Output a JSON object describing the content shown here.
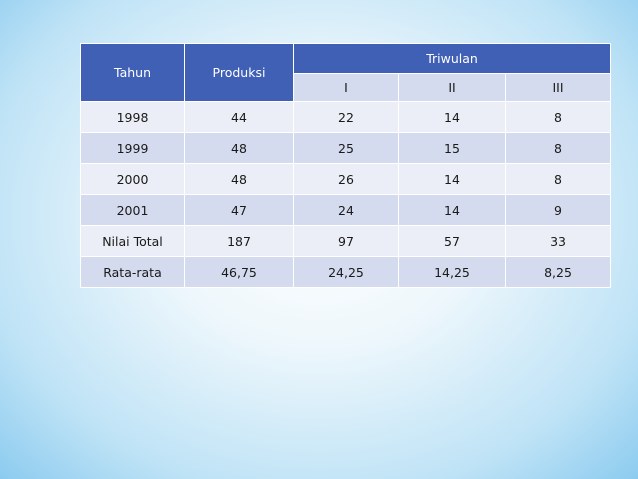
{
  "table": {
    "headers": {
      "tahun": "Tahun",
      "produksi": "Produksi",
      "triwulan": "Triwulan",
      "quarters": [
        "I",
        "II",
        "III"
      ]
    },
    "rows": [
      [
        "1998",
        "44",
        "22",
        "14",
        "8"
      ],
      [
        "1999",
        "48",
        "25",
        "15",
        "8"
      ],
      [
        "2000",
        "48",
        "26",
        "14",
        "8"
      ],
      [
        "2001",
        "47",
        "24",
        "14",
        "9"
      ],
      [
        "Nilai Total",
        "187",
        "97",
        "57",
        "33"
      ],
      [
        "Rata-rata",
        "46,75",
        "24,25",
        "14,25",
        "8,25"
      ]
    ]
  },
  "colors": {
    "header_bg": "#4060b6",
    "row_odd_bg": "#d5dbee",
    "row_even_bg": "#ebeef6",
    "background_light": "#ffffff",
    "background_edge": "#8ccbef"
  }
}
